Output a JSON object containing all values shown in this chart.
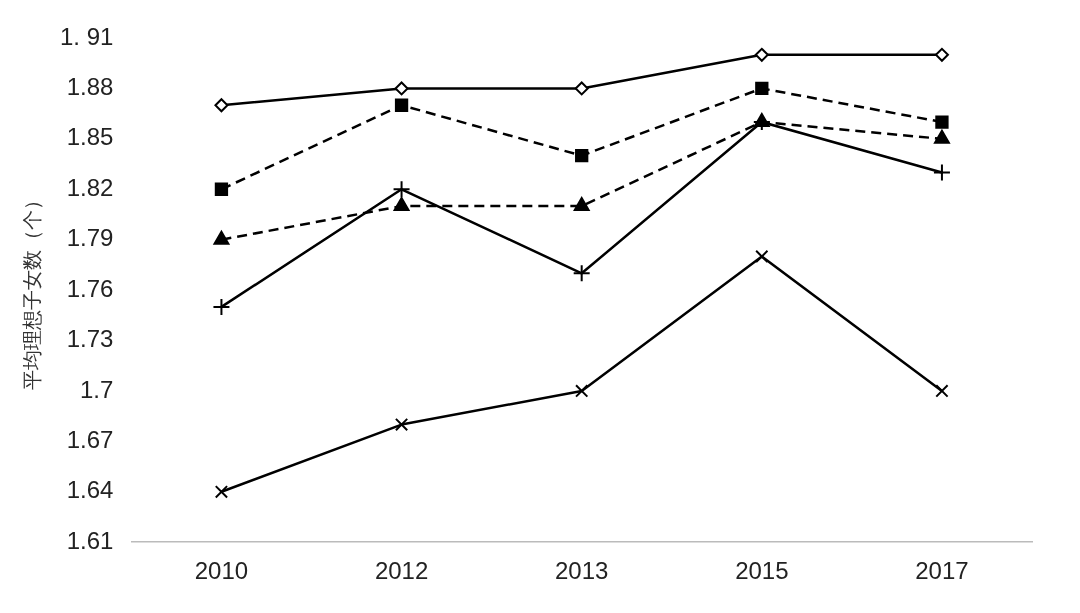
{
  "chart_data": {
    "type": "line",
    "ylabel": "平均理想子女数（个）",
    "categories": [
      "2010",
      "2012",
      "2013",
      "2015",
      "2017"
    ],
    "ylim": [
      1.61,
      1.91
    ],
    "yticks": [
      1.61,
      1.64,
      1.67,
      1.7,
      1.73,
      1.76,
      1.79,
      1.82,
      1.85,
      1.88,
      {
        "value": 1.91,
        "label": "1. 91"
      }
    ],
    "grid": false,
    "legend": false,
    "series": [
      {
        "color": "#000000",
        "marker": "diamond",
        "line_style": "solid",
        "values": [
          1.87,
          1.88,
          1.88,
          1.9,
          1.9
        ]
      },
      {
        "color": "#000000",
        "marker": "square",
        "line_style": "dashed",
        "values": [
          1.82,
          1.87,
          1.84,
          1.88,
          1.86
        ]
      },
      {
        "color": "#000000",
        "marker": "triangle",
        "line_style": "dashed",
        "values": [
          1.79,
          1.81,
          1.81,
          1.86,
          1.85
        ]
      },
      {
        "color": "#000000",
        "marker": "cross",
        "line_style": "solid",
        "values": [
          1.75,
          1.82,
          1.77,
          1.86,
          1.83
        ]
      },
      {
        "color": "#000000",
        "marker": "cross",
        "line_style": "solid",
        "values": [
          1.64,
          1.68,
          1.7,
          1.78,
          1.7
        ]
      }
    ]
  }
}
